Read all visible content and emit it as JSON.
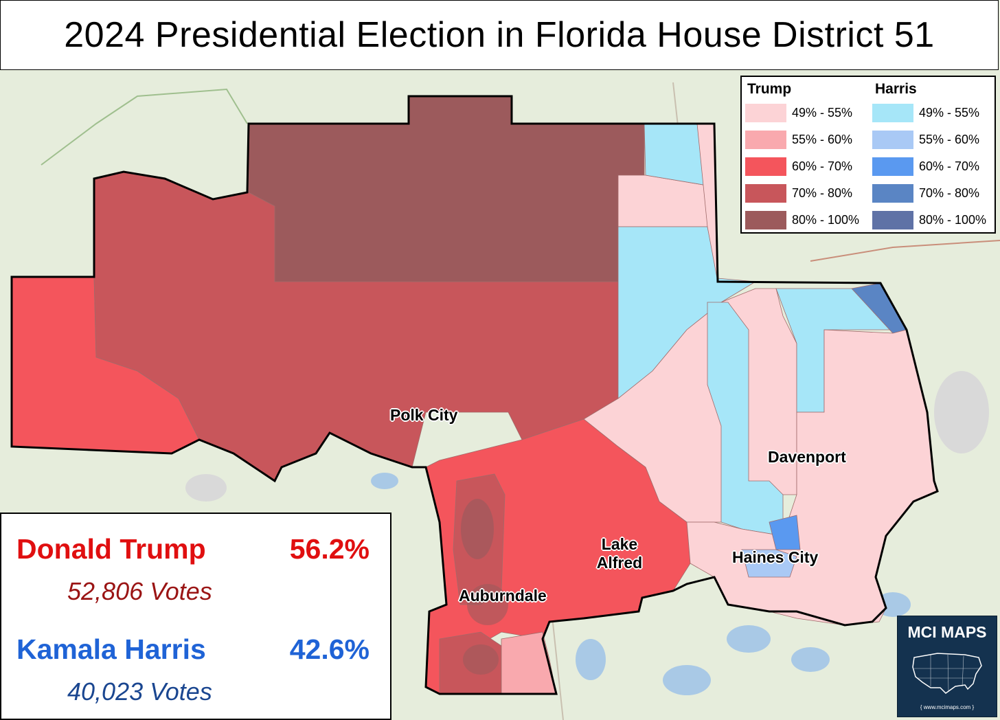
{
  "title": "2024 Presidential Election in Florida House District 51",
  "legend": {
    "trump_header": "Trump",
    "harris_header": "Harris",
    "trump": [
      {
        "label": "49% - 55%",
        "color": "#fcd3d6"
      },
      {
        "label": "55% - 60%",
        "color": "#f9a9ae"
      },
      {
        "label": "60% - 70%",
        "color": "#f4555c"
      },
      {
        "label": "70% - 80%",
        "color": "#c8565b"
      },
      {
        "label": "80% - 100%",
        "color": "#9c5a5c"
      }
    ],
    "harris": [
      {
        "label": "49% - 55%",
        "color": "#a6e6f8"
      },
      {
        "label": "55% - 60%",
        "color": "#a9c9f5"
      },
      {
        "label": "60% - 70%",
        "color": "#5a99f0"
      },
      {
        "label": "70% - 80%",
        "color": "#5a85c4"
      },
      {
        "label": "80% - 100%",
        "color": "#5f72a6"
      }
    ]
  },
  "results": {
    "trump": {
      "name": "Donald Trump",
      "pct": "56.2%",
      "votes": "52,806  Votes",
      "color": "#e00f10",
      "votes_color": "#9a1414"
    },
    "harris": {
      "name": "Kamala Harris",
      "pct": "42.6%",
      "votes": "40,023  Votes",
      "color": "#1f63d6",
      "votes_color": "#1a4690"
    }
  },
  "places": {
    "polk_city": "Polk City",
    "davenport": "Davenport",
    "lake_alfred_1": "Lake",
    "lake_alfred_2": "Alfred",
    "haines_city": "Haines City",
    "auburndale": "Auburndale"
  },
  "logo": {
    "name": "MCI MAPS",
    "url": "{ www.mcimaps.com }"
  }
}
